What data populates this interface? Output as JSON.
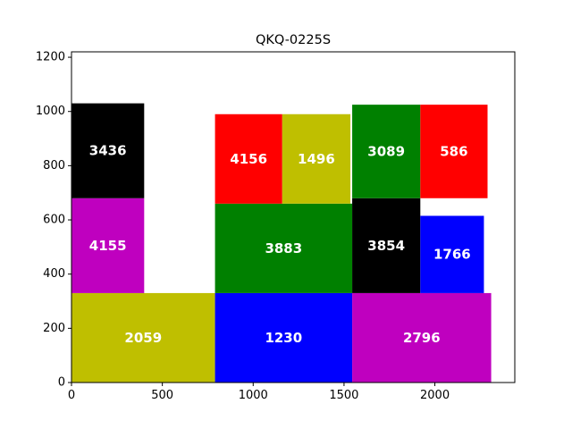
{
  "chart_data": {
    "type": "bar",
    "title": "QKQ-0225S",
    "xlabel": "",
    "ylabel": "",
    "xlim": [
      0,
      2440
    ],
    "ylim": [
      0,
      1220
    ],
    "xticks": [
      0,
      500,
      1000,
      1500,
      2000
    ],
    "yticks": [
      0,
      200,
      400,
      600,
      800,
      1000,
      1200
    ],
    "grid": false,
    "legend": "none",
    "rects": [
      {
        "x0": 0,
        "x1": 790,
        "y0": 0,
        "y1": 330,
        "color": "#bfbf00",
        "label": "2059"
      },
      {
        "x0": 790,
        "x1": 1545,
        "y0": 0,
        "y1": 330,
        "color": "#0000ff",
        "label": "1230"
      },
      {
        "x0": 1545,
        "x1": 2310,
        "y0": 0,
        "y1": 330,
        "color": "#bf00bf",
        "label": "2796"
      },
      {
        "x0": 0,
        "x1": 400,
        "y0": 330,
        "y1": 680,
        "color": "#bf00bf",
        "label": "4155"
      },
      {
        "x0": 0,
        "x1": 400,
        "y0": 680,
        "y1": 1030,
        "color": "#000000",
        "label": "3436"
      },
      {
        "x0": 790,
        "x1": 1545,
        "y0": 330,
        "y1": 660,
        "color": "#008000",
        "label": "3883"
      },
      {
        "x0": 790,
        "x1": 1160,
        "y0": 660,
        "y1": 990,
        "color": "#ff0000",
        "label": "4156"
      },
      {
        "x0": 1160,
        "x1": 1535,
        "y0": 660,
        "y1": 990,
        "color": "#bfbf00",
        "label": "1496"
      },
      {
        "x0": 1545,
        "x1": 1920,
        "y0": 330,
        "y1": 680,
        "color": "#000000",
        "label": "3854"
      },
      {
        "x0": 1920,
        "x1": 2270,
        "y0": 330,
        "y1": 615,
        "color": "#0000ff",
        "label": "1766"
      },
      {
        "x0": 1545,
        "x1": 1920,
        "y0": 680,
        "y1": 1025,
        "color": "#008000",
        "label": "3089"
      },
      {
        "x0": 1920,
        "x1": 2290,
        "y0": 680,
        "y1": 1025,
        "color": "#ff0000",
        "label": "586"
      }
    ]
  }
}
